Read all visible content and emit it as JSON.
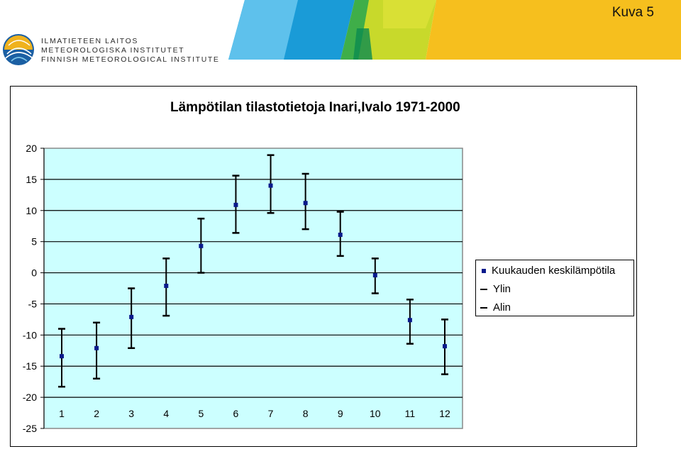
{
  "header": {
    "slide_label": "Kuva 5",
    "logo_lines": [
      "ILMATIETEEN LAITOS",
      "METEOROLOGISKA INSTITUTET",
      "FINNISH METEOROLOGICAL INSTITUTE"
    ],
    "colors": [
      "#1a9bd7",
      "#43b6e8",
      "#5bb85d",
      "#c3d62a",
      "#f2c01c",
      "#f7a91f"
    ]
  },
  "chart_data": {
    "type": "scatter",
    "title": "Lämpötilan tilastotietoja Inari,Ivalo 1971-2000",
    "categories": [
      "1",
      "2",
      "3",
      "4",
      "5",
      "6",
      "7",
      "8",
      "9",
      "10",
      "11",
      "12"
    ],
    "y_ticks": [
      "20",
      "15",
      "10",
      "5",
      "0",
      "-5",
      "-10",
      "-15",
      "-20",
      "-25"
    ],
    "ylim": [
      -25,
      20
    ],
    "grid": true,
    "legend_position": "right",
    "series": [
      {
        "name": "Kuukauden keskilämpötila",
        "values": [
          -13.4,
          -12.1,
          -7.1,
          -2.1,
          4.3,
          10.9,
          14.0,
          11.2,
          6.1,
          -0.4,
          -7.6,
          -11.8
        ]
      },
      {
        "name": "Ylin",
        "values": [
          -9.0,
          -8.0,
          -2.5,
          2.3,
          8.7,
          15.6,
          18.9,
          15.9,
          9.8,
          2.3,
          -4.3,
          -7.5
        ]
      },
      {
        "name": "Alin",
        "values": [
          -18.3,
          -17.0,
          -12.1,
          -6.9,
          0.0,
          6.4,
          9.6,
          7.0,
          2.7,
          -3.3,
          -11.4,
          -16.3
        ]
      }
    ],
    "colors": {
      "plot_bg": "#ccffff",
      "point": "#0a1a8c",
      "errorbar": "#000000",
      "grid": "#000000"
    }
  }
}
